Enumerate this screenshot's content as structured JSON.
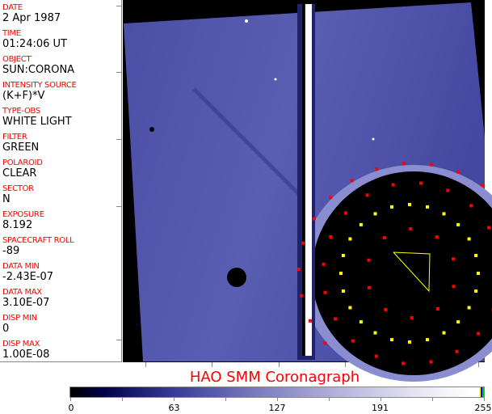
{
  "header_fields": [
    {
      "label": "DATE",
      "value": "2 Apr 1987"
    },
    {
      "label": "TIME",
      "value": "01:24:06 UT"
    },
    {
      "label": "OBJECT",
      "value": "SUN:CORONA"
    },
    {
      "label": "INTENSITY SOURCE",
      "value": "(K+F)*V"
    },
    {
      "label": "TYPE-OBS",
      "value": "WHITE LIGHT"
    },
    {
      "label": "FILTER",
      "value": "GREEN"
    },
    {
      "label": "POLAROID",
      "value": "CLEAR"
    },
    {
      "label": "SECTOR",
      "value": "N"
    },
    {
      "label": "EXPOSURE",
      "value": "8.192"
    },
    {
      "label": "SPACECRAFT ROLL",
      "value": "-89"
    },
    {
      "label": "DATA MIN",
      "value": "-2.43E-07"
    },
    {
      "label": "DATA MAX",
      "value": "3.10E-07"
    },
    {
      "label": "DISP MIN",
      "value": "0"
    },
    {
      "label": "DISP MAX",
      "value": "1.00E-08"
    }
  ],
  "title": "HAO   SMM  Coronagraph",
  "colorbar": {
    "ticks": [
      "0",
      "63",
      "127",
      "191",
      "255"
    ],
    "colors": {
      "low": "#000000",
      "mid": "#7a7ac0",
      "high": "#ffffff"
    }
  },
  "colors": {
    "image": "#4a4ea8",
    "markers_red": "#ff0000",
    "markers_yellow": "#ffff00"
  }
}
